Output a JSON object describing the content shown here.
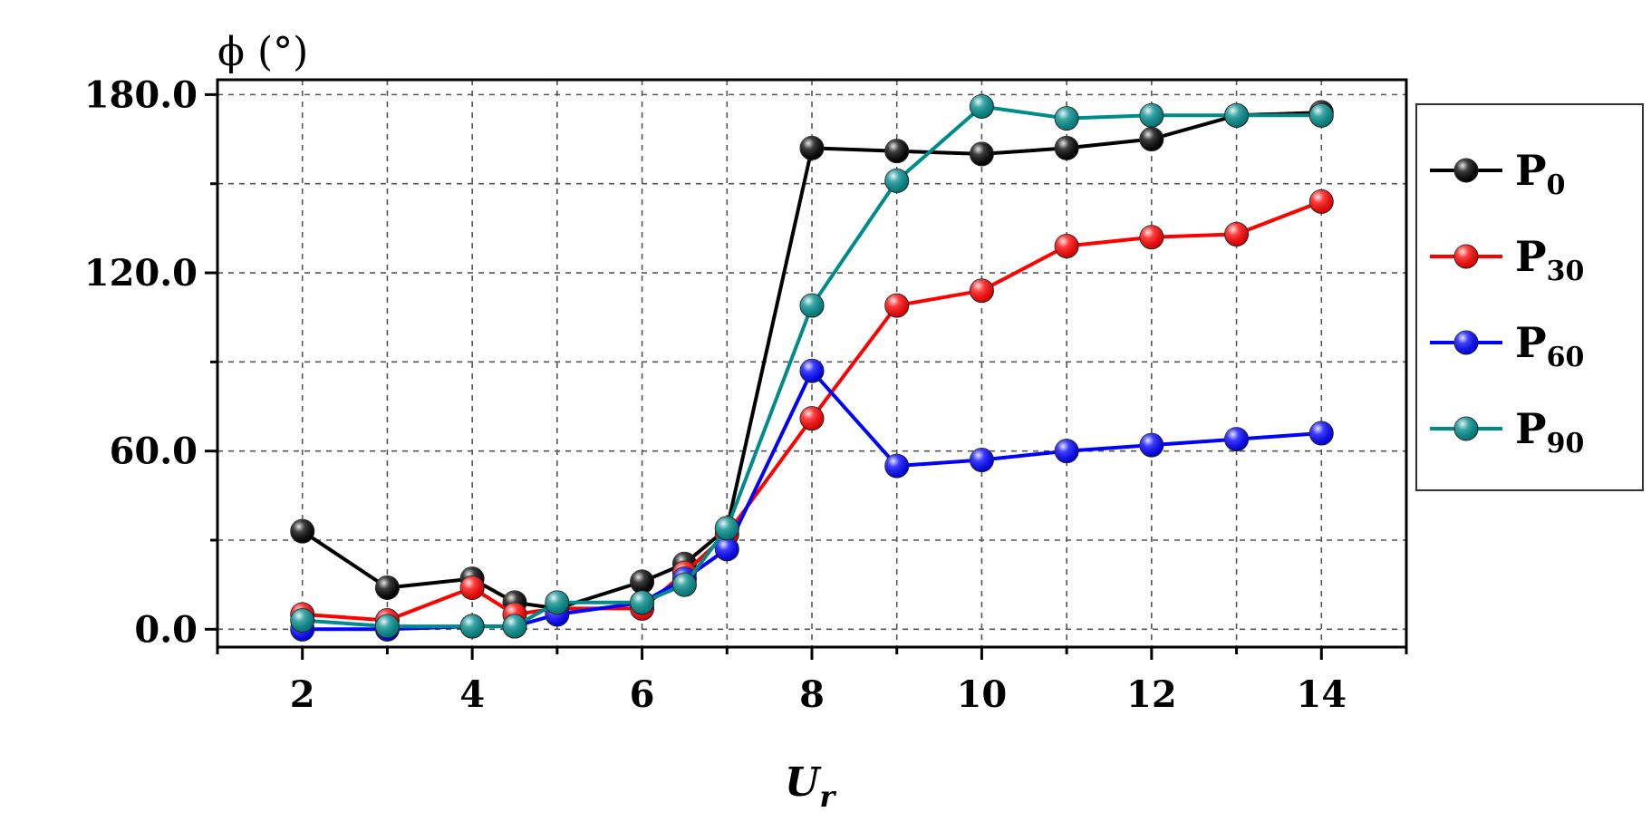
{
  "chart_data": {
    "type": "line",
    "ylabel": "ϕ (°)",
    "xlabel": "U",
    "xlabel_sub": "r",
    "xlim": [
      1,
      15
    ],
    "ylim": [
      -6,
      185
    ],
    "xticks": [
      2,
      4,
      6,
      8,
      10,
      12,
      14
    ],
    "xtick_labels": [
      "2",
      "4",
      "6",
      "8",
      "10",
      "12",
      "14"
    ],
    "yticks": [
      0,
      60,
      120,
      180
    ],
    "ytick_labels": [
      "0.0",
      "60.0",
      "120.0",
      "180.0"
    ],
    "grid": true,
    "legend_position": "right",
    "x": [
      2,
      3,
      4,
      4.5,
      5,
      6,
      6.5,
      7,
      8,
      9,
      10,
      11,
      12,
      13,
      14
    ],
    "series": [
      {
        "name": "P",
        "name_sub": "0",
        "color": "#000000",
        "values": [
          33,
          14,
          17,
          9,
          7,
          16,
          22,
          34,
          162,
          161,
          160,
          162,
          165,
          173,
          174
        ]
      },
      {
        "name": "P",
        "name_sub": "30",
        "color": "#ff0000",
        "values": [
          5,
          3,
          14,
          5,
          7,
          7,
          19,
          32,
          71,
          109,
          114,
          129,
          132,
          133,
          144
        ]
      },
      {
        "name": "P",
        "name_sub": "60",
        "color": "#0000ff",
        "values": [
          0,
          0,
          1,
          1,
          5,
          9,
          17,
          27,
          87,
          55,
          57,
          60,
          62,
          64,
          66
        ]
      },
      {
        "name": "P",
        "name_sub": "90",
        "color": "#008b8b",
        "values": [
          3,
          1,
          1,
          1,
          9,
          9,
          15,
          34,
          109,
          151,
          176,
          172,
          173,
          173,
          173
        ]
      }
    ]
  }
}
